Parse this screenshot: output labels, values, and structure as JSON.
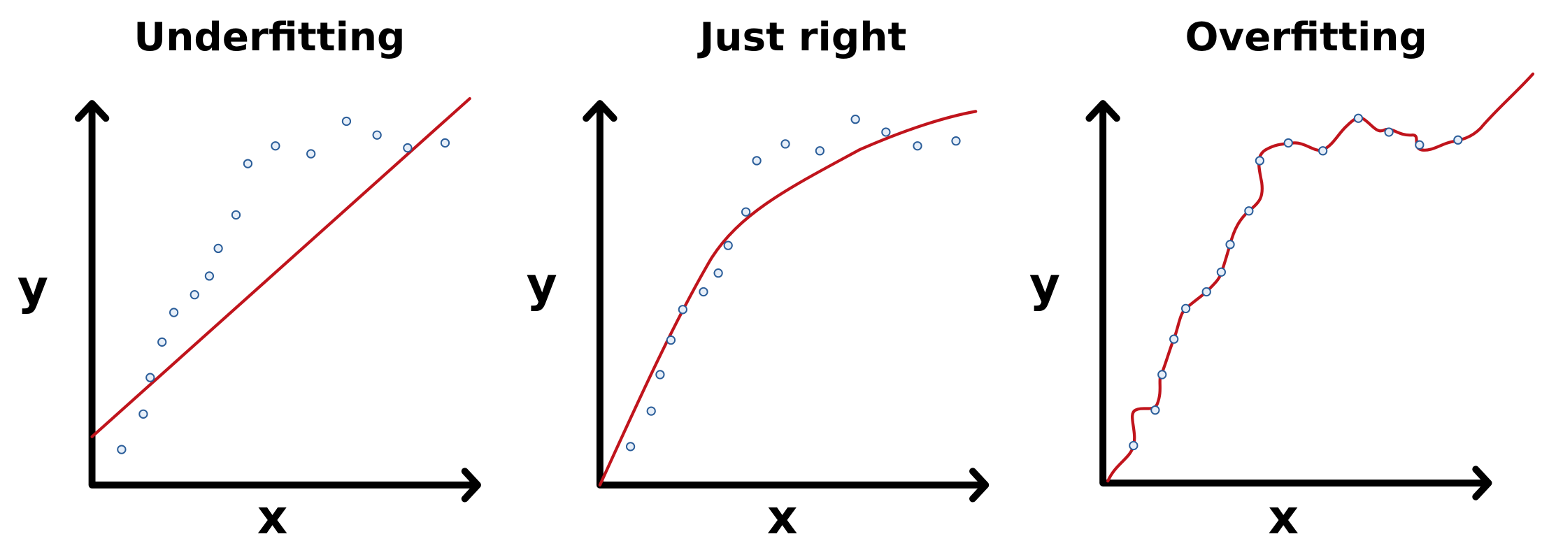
{
  "panels": [
    {
      "title": "Underfitting",
      "x_label": "x",
      "y_label": "y"
    },
    {
      "title": "Just right",
      "x_label": "x",
      "y_label": "y"
    },
    {
      "title": "Overfitting",
      "x_label": "x",
      "y_label": "y"
    }
  ]
}
